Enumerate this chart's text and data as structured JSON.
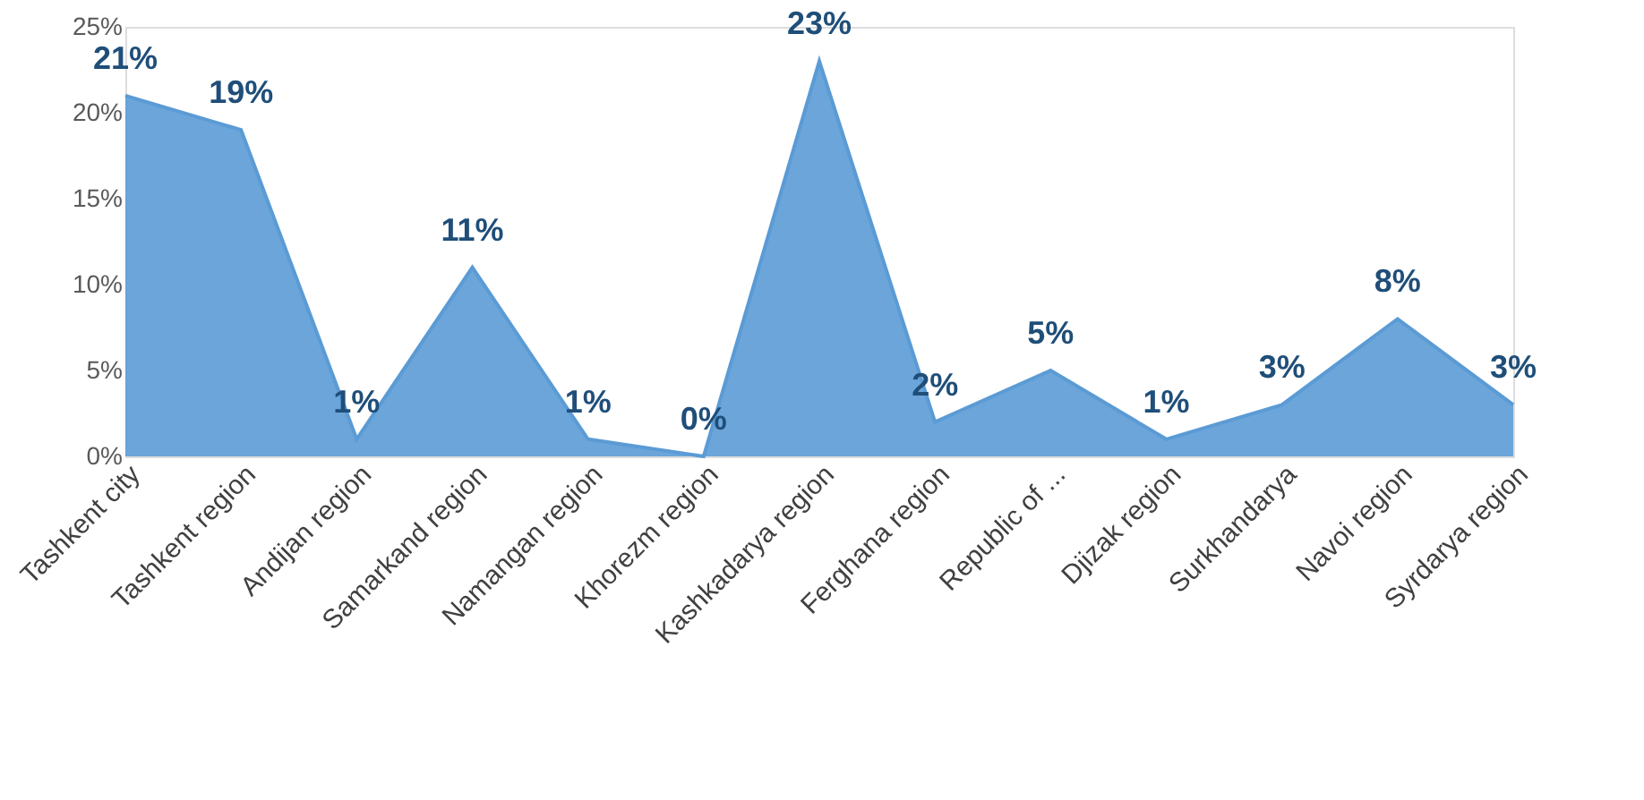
{
  "chart_data": {
    "type": "area",
    "categories": [
      "Tashkent  city",
      "Tashkent  region",
      "Andijan  region",
      "Samarkand region",
      "Namangan region",
      "Khorezm  region",
      "Kashkadarya  region",
      "Ferghana region",
      "Republic of ...",
      "Djizak region",
      "Surkhandarya",
      "Navoi region",
      "Syrdarya  region"
    ],
    "values": [
      21,
      19,
      1,
      11,
      1,
      0,
      23,
      2,
      5,
      1,
      3,
      8,
      3
    ],
    "value_labels": [
      "21%",
      "19%",
      "1%",
      "11%",
      "1%",
      "0%",
      "23%",
      "2%",
      "5%",
      "1%",
      "3%",
      "8%",
      "3%"
    ],
    "color": "#5b9bd5",
    "ylim": [
      0,
      25
    ],
    "yticks": [
      {
        "value": 0,
        "label": "0%"
      },
      {
        "value": 5,
        "label": "5%"
      },
      {
        "value": 10,
        "label": "10%"
      },
      {
        "value": 15,
        "label": "15%"
      },
      {
        "value": 20,
        "label": "20%"
      },
      {
        "value": 25,
        "label": "25%"
      }
    ],
    "grid": false
  }
}
